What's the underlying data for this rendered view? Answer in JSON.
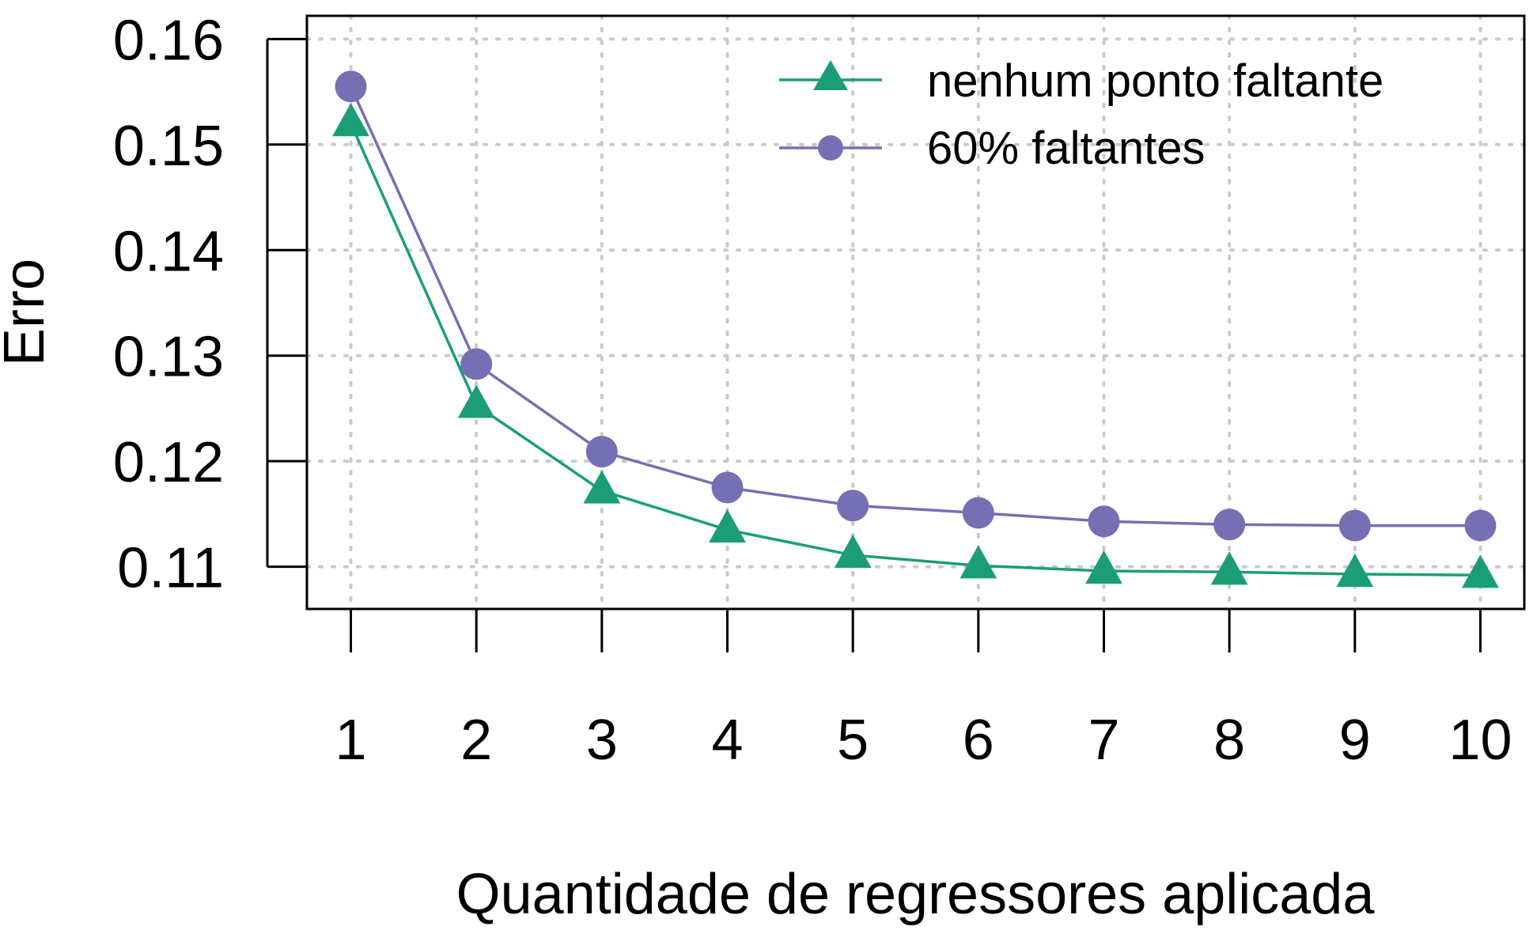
{
  "chart_data": {
    "type": "line",
    "title": "",
    "xlabel": "Quantidade de regressores aplicada",
    "ylabel": "Erro",
    "x": [
      1,
      2,
      3,
      4,
      5,
      6,
      7,
      8,
      9,
      10
    ],
    "xticks": [
      "1",
      "2",
      "3",
      "4",
      "5",
      "6",
      "7",
      "8",
      "9",
      "10"
    ],
    "yticks": [
      "0.11",
      "0.12",
      "0.13",
      "0.14",
      "0.15",
      "0.16"
    ],
    "xlim": [
      0.65,
      10.35
    ],
    "ylim": [
      0.106,
      0.1622
    ],
    "grid": true,
    "legend_position": "top-right",
    "series": [
      {
        "name": "nenhum ponto faltante",
        "marker": "triangle",
        "color": "#1b9e77",
        "values": [
          0.152,
          0.1253,
          0.1172,
          0.1135,
          0.1111,
          0.1101,
          0.1096,
          0.1095,
          0.1093,
          0.1092
        ]
      },
      {
        "name": "60% faltantes",
        "marker": "circle",
        "color": "#7570b3",
        "values": [
          0.1555,
          0.1292,
          0.1209,
          0.1175,
          0.1158,
          0.1151,
          0.1143,
          0.114,
          0.1139,
          0.1139
        ]
      }
    ]
  }
}
